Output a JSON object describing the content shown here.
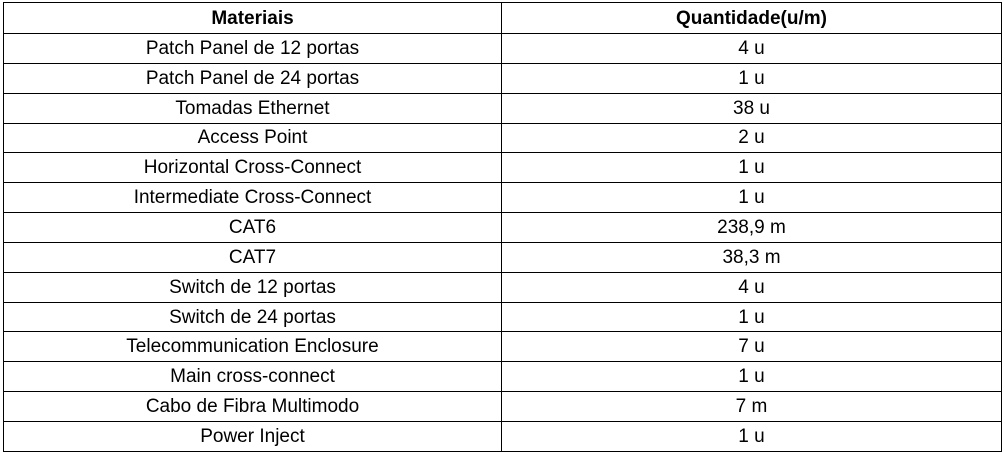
{
  "table": {
    "headers": {
      "material": "Materiais",
      "quantity": "Quantidade(u/m)"
    },
    "rows": [
      {
        "material": "Patch Panel de 12 portas",
        "quantity": "4 u"
      },
      {
        "material": "Patch Panel de 24 portas",
        "quantity": "1 u"
      },
      {
        "material": "Tomadas Ethernet",
        "quantity": "38 u"
      },
      {
        "material": "Access Point",
        "quantity": "2 u"
      },
      {
        "material": "Horizontal Cross-Connect",
        "quantity": "1 u"
      },
      {
        "material": "Intermediate Cross-Connect",
        "quantity": "1 u"
      },
      {
        "material": "CAT6",
        "quantity": "238,9 m"
      },
      {
        "material": "CAT7",
        "quantity": "38,3 m"
      },
      {
        "material": "Switch de 12 portas",
        "quantity": "4 u"
      },
      {
        "material": "Switch de 24 portas",
        "quantity": "1 u"
      },
      {
        "material": "Telecommunication Enclosure",
        "quantity": "7 u"
      },
      {
        "material": "Main cross-connect",
        "quantity": "1 u"
      },
      {
        "material": "Cabo de Fibra Multimodo",
        "quantity": "7 m"
      },
      {
        "material": "Power Inject",
        "quantity": "1 u"
      }
    ]
  }
}
